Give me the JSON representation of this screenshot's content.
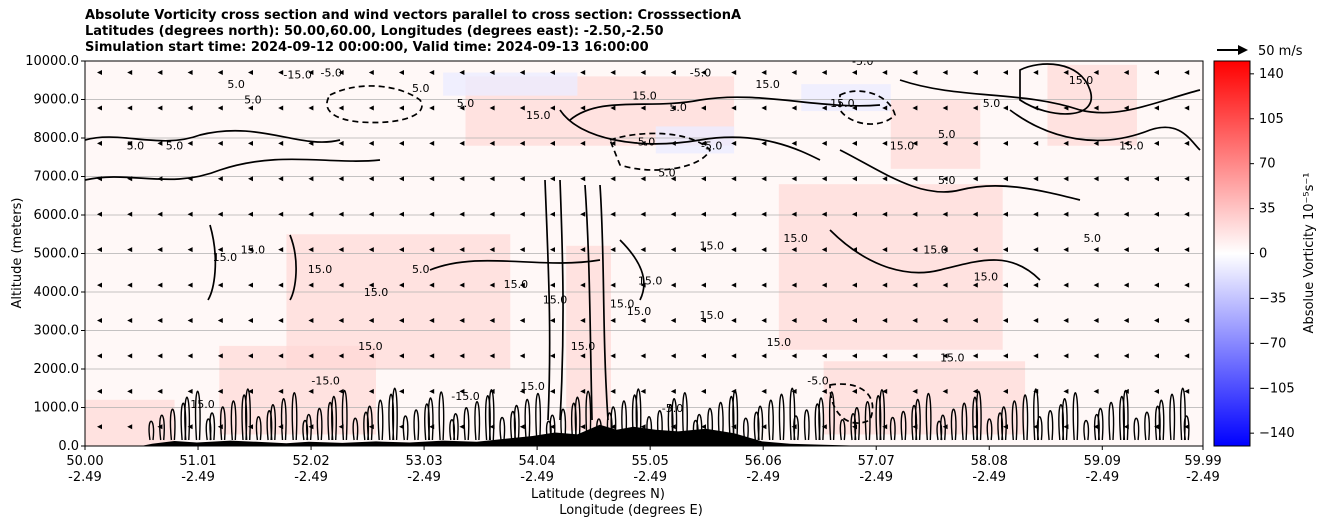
{
  "title": {
    "line1": "Absolute Vorticity cross section and wind vectors parallel to cross section: CrosssectionA",
    "line2": "Latitudes (degrees north): 50.00,60.00, Longitudes (degrees east): -2.50,-2.50",
    "line3": "Simulation start time: 2024-09-12 00:00:00, Valid time: 2024-09-13 16:00:00"
  },
  "chart_data": {
    "type": "heatmap",
    "plot_kind": "filled contour cross section with contour lines and wind vectors",
    "ylabel": "Altitude (meters)",
    "xlabel_line1": "Latitude (degrees N)",
    "xlabel_line2": "Longitude (degrees E)",
    "ylim": [
      0,
      10000
    ],
    "xlim": [
      50.0,
      59.99
    ],
    "y_ticks": [
      {
        "value": 0,
        "label": "0.0"
      },
      {
        "value": 1000,
        "label": "1000.0"
      },
      {
        "value": 2000,
        "label": "2000.0"
      },
      {
        "value": 3000,
        "label": "3000.0"
      },
      {
        "value": 4000,
        "label": "4000.0"
      },
      {
        "value": 5000,
        "label": "5000.0"
      },
      {
        "value": 6000,
        "label": "6000.0"
      },
      {
        "value": 7000,
        "label": "7000.0"
      },
      {
        "value": 8000,
        "label": "8000.0"
      },
      {
        "value": 9000,
        "label": "9000.0"
      },
      {
        "value": 10000,
        "label": "10000.0"
      }
    ],
    "x_ticks": [
      {
        "value": 50.0,
        "lat": "50.00",
        "lon": "-2.49"
      },
      {
        "value": 51.01,
        "lat": "51.01",
        "lon": "-2.49"
      },
      {
        "value": 52.02,
        "lat": "52.02",
        "lon": "-2.49"
      },
      {
        "value": 53.03,
        "lat": "53.03",
        "lon": "-2.49"
      },
      {
        "value": 54.04,
        "lat": "54.04",
        "lon": "-2.49"
      },
      {
        "value": 55.05,
        "lat": "55.05",
        "lon": "-2.49"
      },
      {
        "value": 56.06,
        "lat": "56.06",
        "lon": "-2.49"
      },
      {
        "value": 57.07,
        "lat": "57.07",
        "lon": "-2.49"
      },
      {
        "value": 58.08,
        "lat": "58.08",
        "lon": "-2.49"
      },
      {
        "value": 59.09,
        "lat": "59.09",
        "lon": "-2.49"
      },
      {
        "value": 59.99,
        "lat": "59.99",
        "lon": "-2.49"
      }
    ],
    "grid": "horizontal",
    "colorbar": {
      "label": "Absolue Vorticity 10⁻⁵s⁻¹",
      "range": [
        -150,
        150
      ],
      "ticks": [
        140,
        105,
        70,
        35,
        0,
        -35,
        -70,
        -105,
        -140
      ],
      "cmap": "bwr",
      "color_low": "#0000ff",
      "color_mid": "#ffffff",
      "color_high": "#ff0000"
    },
    "wind_key": {
      "label": "50 m/s",
      "speed": 50
    },
    "contour_levels": [
      -15.0,
      -5.0,
      5.0,
      15.0
    ],
    "contour_labels": [
      {
        "text": "-15.0",
        "x": 51.9,
        "y": 9550
      },
      {
        "text": "-5.0",
        "x": 52.2,
        "y": 9600
      },
      {
        "text": "-5.0",
        "x": 55.5,
        "y": 9600
      },
      {
        "text": "-5.0",
        "x": 56.95,
        "y": 9900
      },
      {
        "text": "5.0",
        "x": 51.35,
        "y": 9300
      },
      {
        "text": "5.0",
        "x": 51.5,
        "y": 8900
      },
      {
        "text": "5.0",
        "x": 53.0,
        "y": 9200
      },
      {
        "text": "5.0",
        "x": 53.4,
        "y": 8800
      },
      {
        "text": "15.0",
        "x": 54.05,
        "y": 8500
      },
      {
        "text": "15.0",
        "x": 55.0,
        "y": 9000
      },
      {
        "text": "5.0",
        "x": 55.3,
        "y": 8700
      },
      {
        "text": "5.0",
        "x": 50.45,
        "y": 7700
      },
      {
        "text": "5.0",
        "x": 50.8,
        "y": 7700
      },
      {
        "text": "-5.0",
        "x": 55.0,
        "y": 7800
      },
      {
        "text": "-5.0",
        "x": 55.6,
        "y": 7700
      },
      {
        "text": "5.0",
        "x": 55.2,
        "y": 7000
      },
      {
        "text": "15.0",
        "x": 56.1,
        "y": 9300
      },
      {
        "text": "-15.0",
        "x": 56.75,
        "y": 8800
      },
      {
        "text": "15.0",
        "x": 57.3,
        "y": 7700
      },
      {
        "text": "5.0",
        "x": 57.7,
        "y": 8000
      },
      {
        "text": "5.0",
        "x": 58.1,
        "y": 8800
      },
      {
        "text": "15.0",
        "x": 58.9,
        "y": 9400
      },
      {
        "text": "15.0",
        "x": 59.35,
        "y": 7700
      },
      {
        "text": "5.0",
        "x": 57.7,
        "y": 6800
      },
      {
        "text": "15.0",
        "x": 51.25,
        "y": 4800
      },
      {
        "text": "15.0",
        "x": 51.5,
        "y": 5000
      },
      {
        "text": "15.0",
        "x": 52.1,
        "y": 4500
      },
      {
        "text": "15.0",
        "x": 52.6,
        "y": 3900
      },
      {
        "text": "5.0",
        "x": 53.0,
        "y": 4500
      },
      {
        "text": "15.0",
        "x": 53.85,
        "y": 4100
      },
      {
        "text": "15.0",
        "x": 54.2,
        "y": 3700
      },
      {
        "text": "15.0",
        "x": 54.8,
        "y": 3600
      },
      {
        "text": "15.0",
        "x": 54.95,
        "y": 3400
      },
      {
        "text": "15.0",
        "x": 55.05,
        "y": 4200
      },
      {
        "text": "15.0",
        "x": 55.6,
        "y": 5100
      },
      {
        "text": "15.0",
        "x": 56.35,
        "y": 5300
      },
      {
        "text": "15.0",
        "x": 57.6,
        "y": 5000
      },
      {
        "text": "15.0",
        "x": 58.05,
        "y": 4300
      },
      {
        "text": "5.0",
        "x": 59.0,
        "y": 5300
      },
      {
        "text": "15.0",
        "x": 57.75,
        "y": 2200
      },
      {
        "text": "15.0",
        "x": 56.2,
        "y": 2600
      },
      {
        "text": "15.0",
        "x": 55.6,
        "y": 3300
      },
      {
        "text": "15.0",
        "x": 54.45,
        "y": 2500
      },
      {
        "text": "15.0",
        "x": 52.55,
        "y": 2500
      },
      {
        "text": "15.0",
        "x": 51.05,
        "y": 990
      },
      {
        "text": "15.0",
        "x": 54.0,
        "y": 1450
      },
      {
        "text": "-5.0",
        "x": 56.55,
        "y": 1600
      },
      {
        "text": "-5.0",
        "x": 55.25,
        "y": 880
      },
      {
        "text": "-15.0",
        "x": 52.15,
        "y": 1600
      },
      {
        "text": "-15.0",
        "x": 53.4,
        "y": 1200
      }
    ],
    "terrain": [
      {
        "x": 50.0,
        "y": 0
      },
      {
        "x": 50.5,
        "y": 0
      },
      {
        "x": 50.6,
        "y": 60
      },
      {
        "x": 50.8,
        "y": 130
      },
      {
        "x": 51.0,
        "y": 90
      },
      {
        "x": 51.3,
        "y": 140
      },
      {
        "x": 51.6,
        "y": 100
      },
      {
        "x": 51.8,
        "y": 70
      },
      {
        "x": 52.0,
        "y": 110
      },
      {
        "x": 52.3,
        "y": 80
      },
      {
        "x": 52.6,
        "y": 120
      },
      {
        "x": 52.9,
        "y": 90
      },
      {
        "x": 53.2,
        "y": 140
      },
      {
        "x": 53.5,
        "y": 110
      },
      {
        "x": 53.8,
        "y": 200
      },
      {
        "x": 54.0,
        "y": 260
      },
      {
        "x": 54.2,
        "y": 350
      },
      {
        "x": 54.4,
        "y": 300
      },
      {
        "x": 54.6,
        "y": 550
      },
      {
        "x": 54.75,
        "y": 420
      },
      {
        "x": 54.9,
        "y": 500
      },
      {
        "x": 55.1,
        "y": 420
      },
      {
        "x": 55.3,
        "y": 380
      },
      {
        "x": 55.55,
        "y": 450
      },
      {
        "x": 55.8,
        "y": 330
      },
      {
        "x": 56.05,
        "y": 120
      },
      {
        "x": 56.3,
        "y": 60
      },
      {
        "x": 56.6,
        "y": 30
      },
      {
        "x": 57.0,
        "y": 0
      },
      {
        "x": 59.99,
        "y": 0
      }
    ],
    "wind_vectors": {
      "u_mps": -3,
      "note": "weak southward flow, small arrows pointing toward lower latitude"
    }
  }
}
